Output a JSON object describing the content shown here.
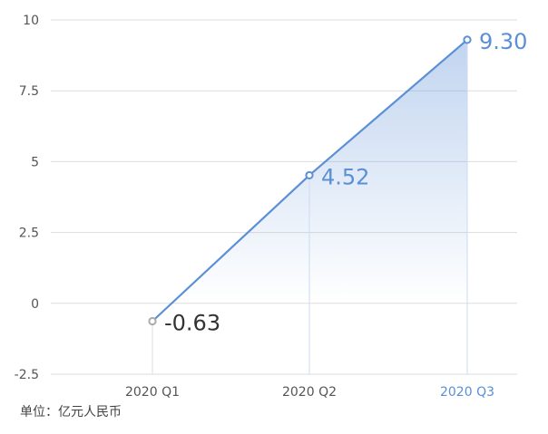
{
  "chart_data": {
    "type": "line",
    "categories": [
      "2020 Q1",
      "2020 Q2",
      "2020 Q3"
    ],
    "series": [
      {
        "values": [
          -0.63,
          4.52,
          9.3
        ]
      }
    ],
    "data_labels": [
      "-0.63",
      "4.52",
      "9.30"
    ],
    "y_ticks": [
      "10",
      "7.5",
      "5",
      "2.5",
      "0",
      "-2.5"
    ],
    "ylim": [
      -2.5,
      10
    ],
    "grid": "horizontal",
    "highlight_category": "2020 Q3",
    "unit_label": "单位：亿元人民币",
    "colors": {
      "line": "#5b8fd6",
      "first_marker": "#aaaaaa",
      "highlight_text": "#5b8fd6",
      "grid": "#dddddd"
    }
  }
}
